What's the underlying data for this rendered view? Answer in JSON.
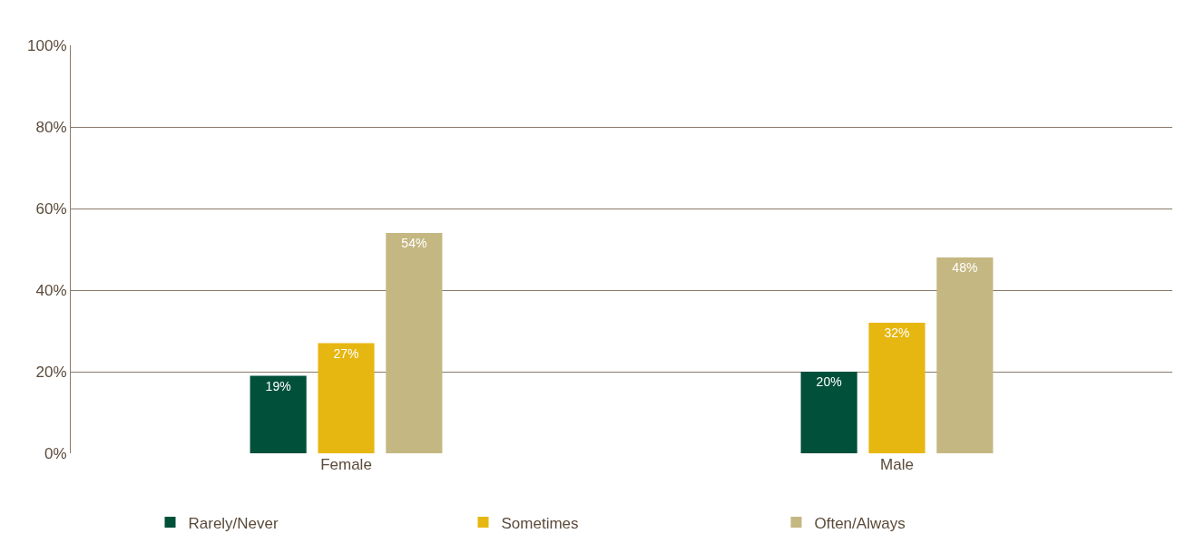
{
  "chart_data": {
    "type": "bar",
    "categories": [
      "Female",
      "Male"
    ],
    "series": [
      {
        "name": "Rarely/Never",
        "color": "#00503a",
        "values": [
          19,
          20
        ],
        "value_labels": [
          "19%",
          "20%"
        ]
      },
      {
        "name": "Sometimes",
        "color": "#e6b711",
        "values": [
          27,
          32
        ],
        "value_labels": [
          "27%",
          "32%"
        ]
      },
      {
        "name": "Often/Always",
        "color": "#c4b781",
        "values": [
          54,
          48
        ],
        "value_labels": [
          "54%",
          "48%"
        ]
      }
    ],
    "ylim": [
      0,
      100
    ],
    "yticks": [
      {
        "value": 0,
        "label": "0%"
      },
      {
        "value": 20,
        "label": "20%"
      },
      {
        "value": 40,
        "label": "40%"
      },
      {
        "value": 60,
        "label": "60%"
      },
      {
        "value": 80,
        "label": "80%"
      },
      {
        "value": 100,
        "label": "100%"
      }
    ],
    "grid": "y",
    "legend": "bottom"
  }
}
